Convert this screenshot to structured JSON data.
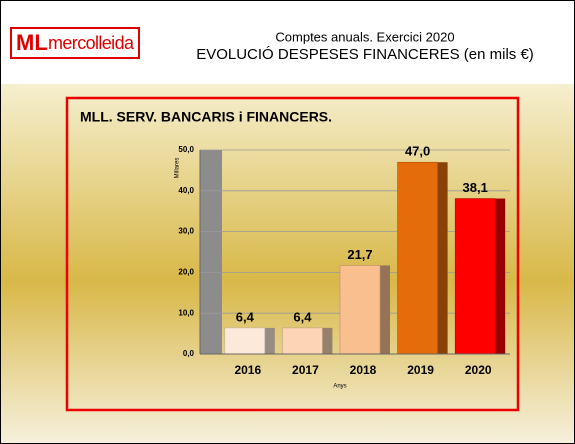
{
  "header": {
    "logo_mark": "ML",
    "logo_name": "mercolleida",
    "line1": "Comptes anuals. Exercici 2020",
    "line2": "EVOLUCIÓ DESPESES FINANCERES (en mils €)"
  },
  "chart_data": {
    "type": "bar",
    "title": "MLL. SERV. BANCARIS i FINANCERS.",
    "y_label": "Millares",
    "x_label": "Anys",
    "categories": [
      "2016",
      "2017",
      "2018",
      "2019",
      "2020"
    ],
    "values": [
      6.4,
      6.4,
      21.7,
      47.0,
      38.1
    ],
    "value_labels": [
      "6,4",
      "6,4",
      "21,7",
      "47,0",
      "38,1"
    ],
    "colors": [
      "#fde9d9",
      "#fcd5b4",
      "#fabf8f",
      "#e46c0a",
      "#ff0000"
    ],
    "ylim": [
      0,
      50
    ],
    "yticks": [
      {
        "value": 0,
        "label": "0,0"
      },
      {
        "value": 10,
        "label": "10,0"
      },
      {
        "value": 20,
        "label": "20,0"
      },
      {
        "value": 30,
        "label": "30,0"
      },
      {
        "value": 40,
        "label": "40,0"
      },
      {
        "value": 50,
        "label": "50,0"
      }
    ],
    "grid": true
  }
}
